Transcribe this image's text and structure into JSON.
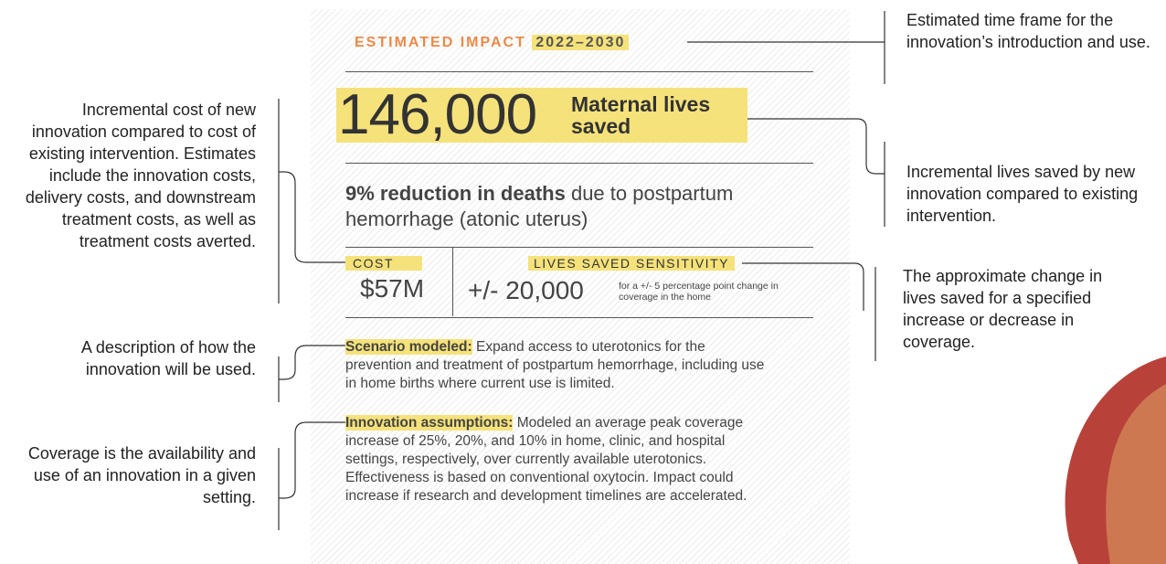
{
  "header": {
    "label": "ESTIMATED IMPACT",
    "years": "2022–2030"
  },
  "headline": {
    "number": "146,000",
    "caption": "Maternal lives saved"
  },
  "reduction": {
    "bold": "9% reduction in deaths",
    "rest": "due to postpartum hemorrhage (atonic uterus)"
  },
  "cost": {
    "label": "COST",
    "value": "$57M"
  },
  "sensitivity": {
    "label": "LIVES SAVED SENSITIVITY",
    "value": "+/- 20,000",
    "note": "for a +/- 5 percentage point change in coverage in the home"
  },
  "scenario": {
    "label": "Scenario modeled:",
    "text": "Expand access to uterotonics for the prevention and treatment of postpartum hemorrhage, including use in home births where current use is limited."
  },
  "assumptions": {
    "label": "Innovation assumptions:",
    "text": "Modeled an average peak coverage increase of 25%, 20%, and 10% in home, clinic, and hospital settings, respectively, over currently available uterotonics. Effectiveness is based on conventional oxytocin. Impact could increase if research and development timelines are accelerated."
  },
  "left_notes": [
    "Incremental cost of new innovation compared to cost of existing intervention. Estimates include the innovation costs, delivery costs, and downstream treatment costs, as well as treatment costs averted.",
    "A description of how the innovation will be used.",
    "Coverage is the availability and use of an innovation in a given setting."
  ],
  "right_notes": [
    "Estimated time frame for the innovation’s introduction and use.",
    "Incremental lives saved by new innovation compared to existing intervention.",
    "The approximate change in lives saved for a specified increase or decrease in coverage."
  ]
}
